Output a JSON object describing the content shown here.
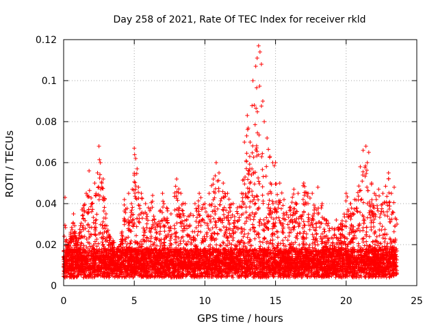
{
  "chart_data": {
    "type": "scatter",
    "title": "Day 258 of 2021, Rate Of TEC Index for receiver rkld",
    "xlabel": "GPS time / hours",
    "ylabel": "ROTI / TECUs",
    "xlim": [
      0,
      25
    ],
    "ylim": [
      0,
      0.12
    ],
    "xticks": [
      0,
      5,
      10,
      15,
      20,
      25
    ],
    "xtick_labels": [
      "0",
      "5",
      "10",
      "15",
      "20",
      "25"
    ],
    "yticks": [
      0,
      0.02,
      0.04,
      0.06,
      0.08,
      0.1,
      0.12
    ],
    "ytick_labels": [
      "0",
      "0.02",
      "0.04",
      "0.06",
      "0.08",
      "0.1",
      "0.12"
    ],
    "grid": true,
    "marker": "+",
    "color": "#ff0000",
    "series": [
      {
        "name": "ROTI",
        "x": [
          0.0,
          0.1,
          0.2,
          0.3,
          0.5,
          0.7,
          1.0,
          1.3,
          1.6,
          1.8,
          2.0,
          2.2,
          2.4,
          2.5,
          2.6,
          2.7,
          2.8,
          3.0,
          3.2,
          3.5,
          3.8,
          4.0,
          4.3,
          4.6,
          4.8,
          5.0,
          5.1,
          5.2,
          5.3,
          5.5,
          5.8,
          6.0,
          6.3,
          6.6,
          7.0,
          7.3,
          7.6,
          8.0,
          8.3,
          8.6,
          9.0,
          9.3,
          9.6,
          10.0,
          10.3,
          10.6,
          10.8,
          11.0,
          11.3,
          11.6,
          12.0,
          12.3,
          12.6,
          12.8,
          13.0,
          13.2,
          13.4,
          13.5,
          13.6,
          13.7,
          13.8,
          13.9,
          14.0,
          14.1,
          14.2,
          14.4,
          14.6,
          14.8,
          15.0,
          15.3,
          15.6,
          16.0,
          16.3,
          16.6,
          17.0,
          17.3,
          17.6,
          18.0,
          18.3,
          18.6,
          19.0,
          19.3,
          19.6,
          20.0,
          20.3,
          20.6,
          21.0,
          21.2,
          21.4,
          21.5,
          21.6,
          21.8,
          22.0,
          22.3,
          22.6,
          23.0,
          23.2,
          23.4,
          23.6
        ],
        "y": [
          0.014,
          0.043,
          0.022,
          0.019,
          0.026,
          0.035,
          0.02,
          0.037,
          0.045,
          0.056,
          0.04,
          0.05,
          0.055,
          0.068,
          0.06,
          0.05,
          0.052,
          0.035,
          0.025,
          0.022,
          0.018,
          0.02,
          0.042,
          0.045,
          0.04,
          0.067,
          0.062,
          0.057,
          0.048,
          0.045,
          0.04,
          0.038,
          0.044,
          0.03,
          0.045,
          0.038,
          0.035,
          0.052,
          0.045,
          0.04,
          0.035,
          0.04,
          0.045,
          0.04,
          0.045,
          0.052,
          0.06,
          0.055,
          0.05,
          0.045,
          0.04,
          0.038,
          0.045,
          0.07,
          0.083,
          0.07,
          0.1,
          0.088,
          0.107,
          0.111,
          0.117,
          0.114,
          0.108,
          0.09,
          0.08,
          0.072,
          0.063,
          0.06,
          0.06,
          0.05,
          0.042,
          0.038,
          0.047,
          0.045,
          0.05,
          0.045,
          0.045,
          0.048,
          0.04,
          0.032,
          0.028,
          0.032,
          0.03,
          0.045,
          0.04,
          0.042,
          0.058,
          0.066,
          0.068,
          0.06,
          0.065,
          0.05,
          0.045,
          0.047,
          0.045,
          0.055,
          0.045,
          0.048,
          0.03
        ]
      }
    ]
  }
}
